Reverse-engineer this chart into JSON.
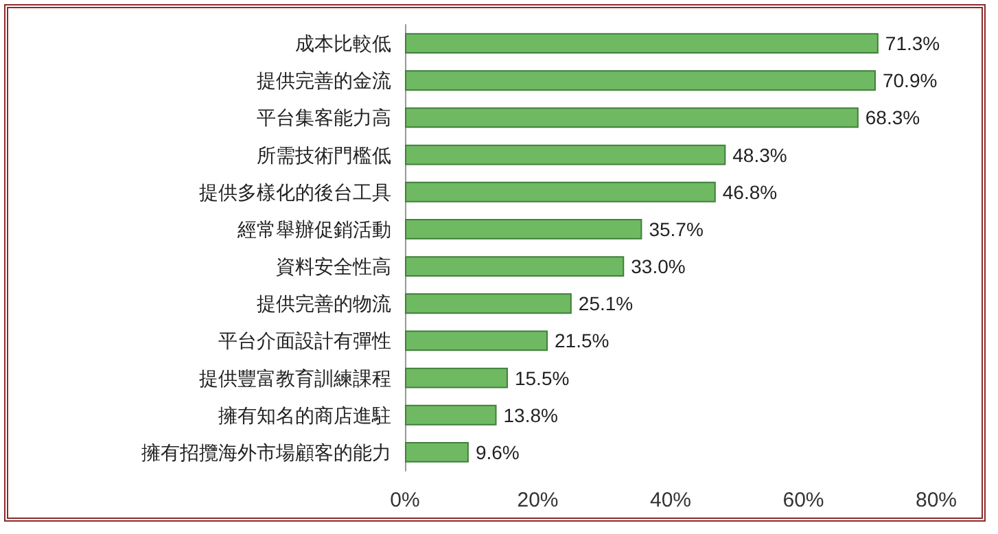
{
  "chart_data": {
    "type": "bar",
    "orientation": "horizontal",
    "categories": [
      "成本比較低",
      "提供完善的金流",
      "平台集客能力高",
      "所需技術門檻低",
      "提供多樣化的後台工具",
      "經常舉辦促銷活動",
      "資料安全性高",
      "提供完善的物流",
      "平台介面設計有彈性",
      "提供豐富教育訓練課程",
      "擁有知名的商店進駐",
      "擁有招攬海外市場顧客的能力"
    ],
    "values": [
      71.3,
      70.9,
      68.3,
      48.3,
      46.8,
      35.7,
      33.0,
      25.1,
      21.5,
      15.5,
      13.8,
      9.6
    ],
    "value_labels": [
      "71.3%",
      "70.9%",
      "68.3%",
      "48.3%",
      "46.8%",
      "35.7%",
      "33.0%",
      "25.1%",
      "21.5%",
      "15.5%",
      "13.8%",
      "9.6%"
    ],
    "color": "#70b963",
    "xlim": [
      0,
      80
    ],
    "xticks": [
      {
        "value": 0,
        "label": "0%"
      },
      {
        "value": 20,
        "label": "20%"
      },
      {
        "value": 40,
        "label": "40%"
      },
      {
        "value": 60,
        "label": "60%"
      },
      {
        "value": 80,
        "label": "80%"
      }
    ],
    "grid": false
  }
}
